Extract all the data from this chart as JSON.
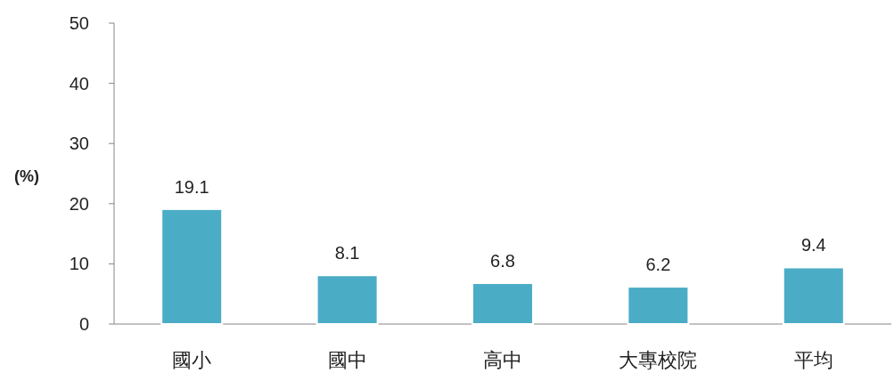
{
  "chart_data": {
    "type": "bar",
    "ylabel": "(%)",
    "categories": [
      "國小",
      "國中",
      "高中",
      "大專校院",
      "平均"
    ],
    "values": [
      19.1,
      8.1,
      6.8,
      6.2,
      9.4
    ],
    "color": "#4bacc6",
    "ylim": [
      0,
      50
    ],
    "yticks": [
      0,
      10,
      20,
      30,
      40,
      50
    ],
    "data_labels": true,
    "grid": false
  }
}
